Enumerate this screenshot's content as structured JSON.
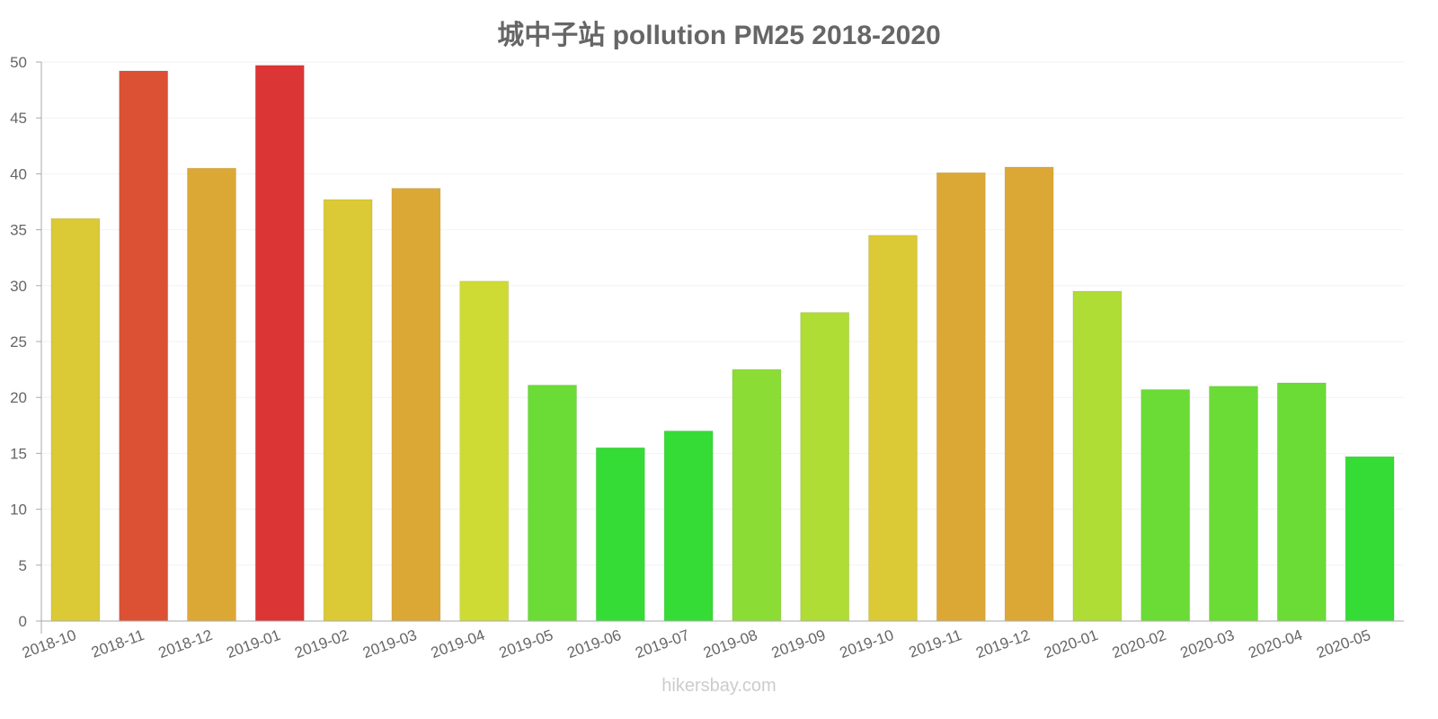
{
  "title": "城中子站 pollution PM25 2018-2020",
  "watermark": "hikersbay.com",
  "chart_data": {
    "type": "bar",
    "title": "城中子站 pollution PM25 2018-2020",
    "xlabel": "",
    "ylabel": "",
    "ylim": [
      0,
      50
    ],
    "yticks": [
      0,
      5,
      10,
      15,
      20,
      25,
      30,
      35,
      40,
      45,
      50
    ],
    "grid": true,
    "legend": "none",
    "categories": [
      "2018-10",
      "2018-11",
      "2018-12",
      "2019-01",
      "2019-02",
      "2019-03",
      "2019-04",
      "2019-05",
      "2019-06",
      "2019-07",
      "2019-08",
      "2019-09",
      "2019-10",
      "2019-11",
      "2019-12",
      "2020-01",
      "2020-02",
      "2020-03",
      "2020-04",
      "2020-05"
    ],
    "values": [
      36.0,
      49.2,
      40.5,
      49.7,
      37.7,
      38.7,
      30.4,
      21.1,
      15.5,
      17.0,
      22.5,
      27.6,
      34.5,
      40.1,
      40.6,
      29.5,
      20.7,
      21.0,
      21.3,
      14.7
    ],
    "colors": [
      "#dbc935",
      "#dc5133",
      "#dca835",
      "#dc3535",
      "#dbc935",
      "#dca835",
      "#cfdb35",
      "#6bdc35",
      "#35dc35",
      "#35dc35",
      "#8bdc35",
      "#afdc35",
      "#dbc935",
      "#dca835",
      "#dca835",
      "#afdc35",
      "#6bdc35",
      "#6bdc35",
      "#6bdc35",
      "#35dc35"
    ]
  }
}
